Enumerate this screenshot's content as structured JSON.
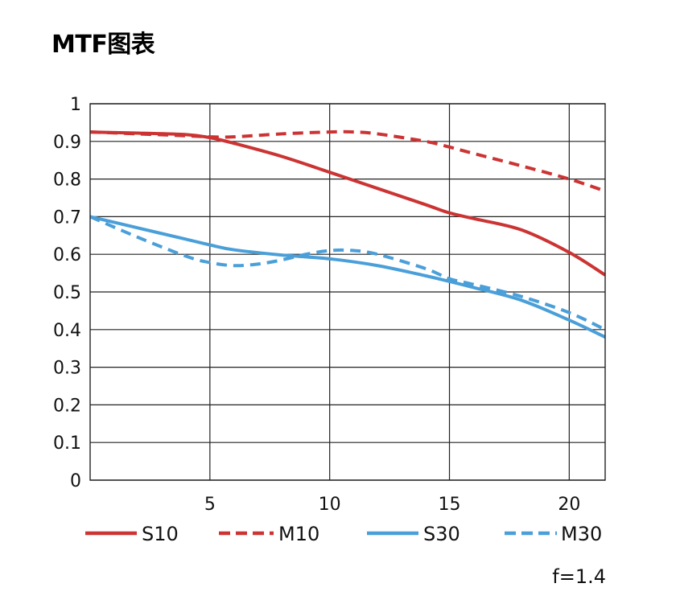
{
  "title": "MTF图表",
  "note": "f=1.4",
  "colors": {
    "red": "#cc3333",
    "blue": "#4a9fd9",
    "grid": "#222222"
  },
  "chart_data": {
    "type": "line",
    "title": "",
    "xlabel": "",
    "ylabel": "",
    "xlim": [
      0,
      21.5
    ],
    "ylim": [
      0,
      1
    ],
    "grid": true,
    "legend_position": "bottom",
    "x_ticks": [
      5,
      10,
      15,
      20
    ],
    "x_tick_labels": [
      "5",
      "10",
      "15",
      "20"
    ],
    "y_ticks": [
      0,
      0.1,
      0.2,
      0.3,
      0.4,
      0.5,
      0.6,
      0.7,
      0.8,
      0.9,
      1
    ],
    "y_tick_labels": [
      "0",
      "0.1",
      "0.2",
      "0.3",
      "0.4",
      "0.5",
      "0.6",
      "0.7",
      "0.8",
      "0.9",
      "1"
    ],
    "series": [
      {
        "name": "S10",
        "color": "#cc3333",
        "style": "solid",
        "x": [
          0,
          2,
          4,
          5,
          6,
          8,
          10,
          12,
          14,
          15,
          16,
          18,
          20,
          21.5
        ],
        "y": [
          0.925,
          0.922,
          0.918,
          0.91,
          0.895,
          0.86,
          0.818,
          0.775,
          0.732,
          0.71,
          0.695,
          0.665,
          0.605,
          0.545
        ]
      },
      {
        "name": "M10",
        "color": "#cc3333",
        "style": "dashed",
        "x": [
          0,
          2,
          4,
          5,
          6,
          8,
          10,
          11,
          12,
          14,
          15,
          16,
          18,
          20,
          21.5
        ],
        "y": [
          0.925,
          0.92,
          0.915,
          0.912,
          0.912,
          0.92,
          0.925,
          0.925,
          0.92,
          0.9,
          0.885,
          0.868,
          0.835,
          0.8,
          0.768
        ]
      },
      {
        "name": "S30",
        "color": "#4a9fd9",
        "style": "solid",
        "x": [
          0,
          2,
          4,
          5,
          6,
          8,
          10,
          12,
          14,
          15,
          16,
          18,
          20,
          21.5
        ],
        "y": [
          0.7,
          0.67,
          0.64,
          0.625,
          0.612,
          0.598,
          0.588,
          0.57,
          0.543,
          0.528,
          0.512,
          0.478,
          0.425,
          0.38
        ]
      },
      {
        "name": "M30",
        "color": "#4a9fd9",
        "style": "dashed",
        "x": [
          0,
          2,
          4,
          5,
          6,
          7,
          8,
          9,
          10,
          11,
          12,
          14,
          15,
          16,
          18,
          20,
          21.5
        ],
        "y": [
          0.7,
          0.645,
          0.595,
          0.578,
          0.57,
          0.574,
          0.585,
          0.6,
          0.61,
          0.61,
          0.6,
          0.562,
          0.535,
          0.52,
          0.488,
          0.445,
          0.4
        ]
      }
    ]
  }
}
